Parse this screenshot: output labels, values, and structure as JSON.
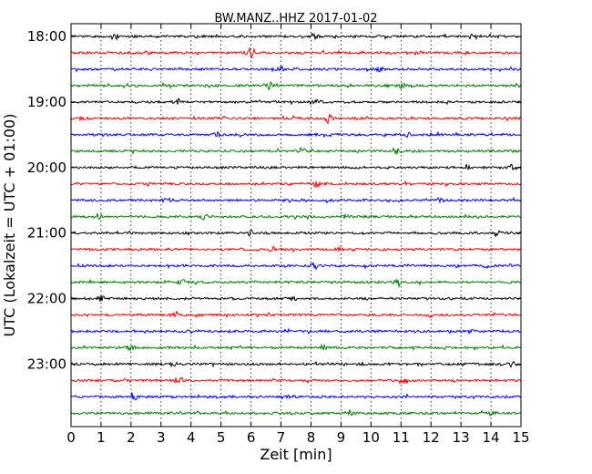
{
  "chart_data": {
    "type": "line",
    "title": "BW.MANZ..HHZ 2017-01-02",
    "xlabel": "Zeit  [min]",
    "ylabel": "UTC (Lokalzeit = UTC + 01:00)",
    "xlim": [
      0,
      15
    ],
    "x_ticks": [
      "0",
      "1",
      "2",
      "3",
      "4",
      "5",
      "6",
      "7",
      "8",
      "9",
      "10",
      "11",
      "12",
      "13",
      "14",
      "15"
    ],
    "y_ticks": [
      "18:00",
      "19:00",
      "20:00",
      "21:00",
      "22:00",
      "23:00"
    ],
    "y_tick_rows": [
      0,
      4,
      8,
      12,
      16,
      20
    ],
    "grid": "vertical dotted at each minute",
    "row_count": 24,
    "row_interval_minutes": 15,
    "row_colors": [
      "#000000",
      "#ff0000",
      "#0000ff",
      "#007f00"
    ],
    "bursts": [
      {
        "row": 0,
        "x": 1.5,
        "amp": 0.9
      },
      {
        "row": 0,
        "x": 8.1,
        "amp": 0.8
      },
      {
        "row": 0,
        "x": 13.3,
        "amp": 0.8
      },
      {
        "row": 1,
        "x": 6.0,
        "amp": 1.8
      },
      {
        "row": 1,
        "x": 2.5,
        "amp": 0.7
      },
      {
        "row": 2,
        "x": 7.0,
        "amp": 0.7
      },
      {
        "row": 2,
        "x": 10.3,
        "amp": 0.6
      },
      {
        "row": 3,
        "x": 6.6,
        "amp": 1.2
      },
      {
        "row": 3,
        "x": 11.0,
        "amp": 0.7
      },
      {
        "row": 4,
        "x": 3.6,
        "amp": 0.8
      },
      {
        "row": 4,
        "x": 8.2,
        "amp": 0.9
      },
      {
        "row": 5,
        "x": 8.6,
        "amp": 1.6
      },
      {
        "row": 5,
        "x": 0.4,
        "amp": 0.6
      },
      {
        "row": 6,
        "x": 4.9,
        "amp": 0.8
      },
      {
        "row": 6,
        "x": 11.2,
        "amp": 0.8
      },
      {
        "row": 7,
        "x": 7.7,
        "amp": 1.0
      },
      {
        "row": 7,
        "x": 10.9,
        "amp": 0.8
      },
      {
        "row": 8,
        "x": 13.2,
        "amp": 0.8
      },
      {
        "row": 8,
        "x": 14.7,
        "amp": 0.9
      },
      {
        "row": 9,
        "x": 8.2,
        "amp": 0.9
      },
      {
        "row": 10,
        "x": 3.2,
        "amp": 0.7
      },
      {
        "row": 10,
        "x": 12.3,
        "amp": 0.7
      },
      {
        "row": 11,
        "x": 0.9,
        "amp": 0.9
      },
      {
        "row": 11,
        "x": 4.4,
        "amp": 0.9
      },
      {
        "row": 11,
        "x": 9.2,
        "amp": 0.8
      },
      {
        "row": 12,
        "x": 6.0,
        "amp": 0.8
      },
      {
        "row": 12,
        "x": 14.2,
        "amp": 0.8
      },
      {
        "row": 13,
        "x": 6.7,
        "amp": 0.7
      },
      {
        "row": 13,
        "x": 9.0,
        "amp": 0.6
      },
      {
        "row": 14,
        "x": 8.1,
        "amp": 1.1
      },
      {
        "row": 14,
        "x": 13.9,
        "amp": 0.7
      },
      {
        "row": 15,
        "x": 10.9,
        "amp": 1.4
      },
      {
        "row": 15,
        "x": 3.7,
        "amp": 0.9
      },
      {
        "row": 16,
        "x": 1.0,
        "amp": 0.8
      },
      {
        "row": 16,
        "x": 7.4,
        "amp": 0.7
      },
      {
        "row": 17,
        "x": 3.5,
        "amp": 0.8
      },
      {
        "row": 17,
        "x": 12.0,
        "amp": 0.7
      },
      {
        "row": 18,
        "x": 7.2,
        "amp": 0.7
      },
      {
        "row": 18,
        "x": 13.3,
        "amp": 0.8
      },
      {
        "row": 19,
        "x": 2.0,
        "amp": 0.7
      },
      {
        "row": 19,
        "x": 8.4,
        "amp": 0.8
      },
      {
        "row": 20,
        "x": 3.4,
        "amp": 0.9
      },
      {
        "row": 20,
        "x": 14.7,
        "amp": 0.8
      },
      {
        "row": 21,
        "x": 3.6,
        "amp": 1.2
      },
      {
        "row": 21,
        "x": 11.1,
        "amp": 0.8
      },
      {
        "row": 22,
        "x": 2.1,
        "amp": 1.4
      },
      {
        "row": 22,
        "x": 7.3,
        "amp": 0.7
      },
      {
        "row": 23,
        "x": 9.3,
        "amp": 1.0
      },
      {
        "row": 23,
        "x": 14.0,
        "amp": 0.7
      }
    ]
  }
}
